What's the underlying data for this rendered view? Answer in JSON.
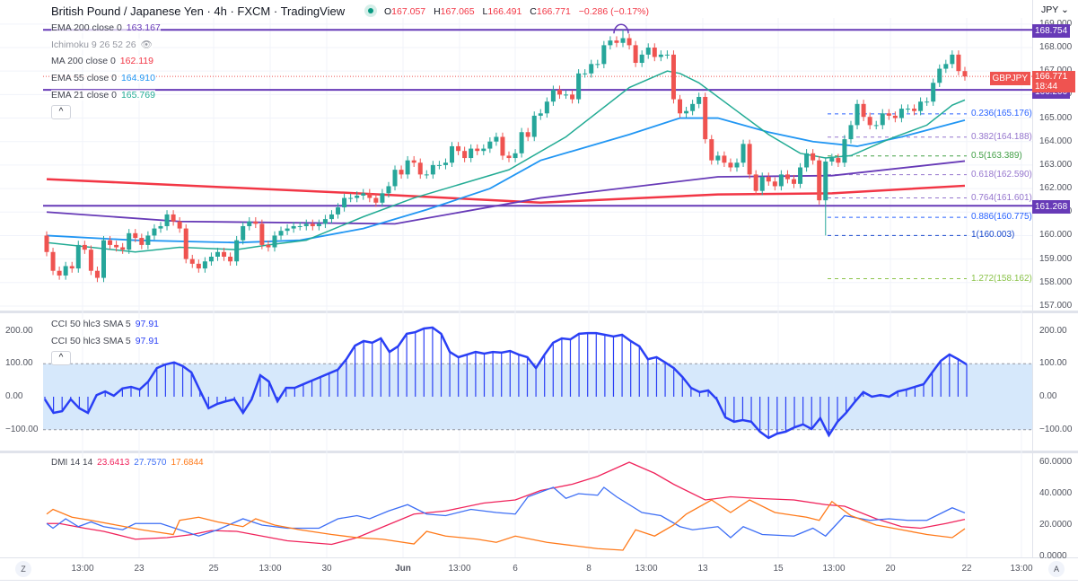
{
  "header": {
    "title": "British Pound / Japanese Yen · 4h · FXCM · TradingView",
    "o_label": "O",
    "o": "167.057",
    "h_label": "H",
    "h": "167.065",
    "l_label": "L",
    "l": "166.491",
    "c_label": "C",
    "c": "166.771",
    "change": "−0.286 (−0.17%)",
    "market_status_icon": "market-open-dot"
  },
  "legend": {
    "ema200": {
      "label": "EMA 200 close 0",
      "value": "163.167",
      "color": "#673ab7"
    },
    "ichimoku": {
      "label": "Ichimoku 9 26 52 26",
      "icon": "eye-crossed-icon"
    },
    "ma200": {
      "label": "MA 200 close 0",
      "value": "162.119",
      "color": "#f23645"
    },
    "ema55": {
      "label": "EMA 55 close 0",
      "value": "164.910",
      "color": "#2196f3"
    },
    "ema21": {
      "label": "EMA 21 close 0",
      "value": "165.769",
      "color": "#22ab94"
    },
    "collapse": "^"
  },
  "price_axis": {
    "currency": "JPY",
    "ticks": [
      "169.000",
      "168.000",
      "167.000",
      "166.000",
      "165.000",
      "164.000",
      "163.000",
      "162.000",
      "161.000",
      "160.000",
      "159.000",
      "158.000",
      "157.000"
    ],
    "levels": [
      "168.754",
      "166.200",
      "161.268"
    ],
    "symbol_tag": "GBPJPY",
    "last_price": "166.771",
    "countdown": "18:44"
  },
  "fib": [
    {
      "label": "0.236(165.176)",
      "price": 165.176,
      "color": "#2962ff"
    },
    {
      "label": "0.382(164.188)",
      "price": 164.188,
      "color": "#9575cd"
    },
    {
      "label": "0.5(163.389)",
      "price": 163.389,
      "color": "#43a047"
    },
    {
      "label": "0.618(162.590)",
      "price": 162.59,
      "color": "#9575cd"
    },
    {
      "label": "0.764(161.601)",
      "price": 161.601,
      "color": "#9575cd"
    },
    {
      "label": "0.886(160.775)",
      "price": 160.775,
      "color": "#2962ff"
    },
    {
      "label": "1(160.003)",
      "price": 160.003,
      "color": "#1848cc"
    },
    {
      "label": "1.272(158.162)",
      "price": 158.162,
      "color": "#8bc34a"
    }
  ],
  "cci": {
    "legend1": "CCI 50 hlc3 SMA 5",
    "value1": "97.91",
    "legend2": "CCI 50 hlc3 SMA 5",
    "value2": "97.91",
    "ticks": [
      "200.00",
      "100.00",
      "0.00",
      "−100.00"
    ],
    "collapse": "^"
  },
  "dmi": {
    "label": "DMI 14 14",
    "adx": "23.6413",
    "plus": "27.7570",
    "minus": "17.6844",
    "ticks": [
      "60.0000",
      "40.0000",
      "20.0000",
      "0.0000"
    ]
  },
  "time_axis": {
    "labels": [
      "13:00",
      "23",
      "25",
      "13:00",
      "30",
      "Jun",
      "13:00",
      "6",
      "8",
      "13:00",
      "13",
      "15",
      "13:00",
      "20",
      "22",
      "13:00"
    ],
    "left_button": "Z",
    "right_button": "A"
  },
  "colors": {
    "up": "#26a69a",
    "down": "#ef5350",
    "level": "#673ab7",
    "cci": "#2a3ff5",
    "cci_band": "#d6e8fb",
    "adx": "#f0245c",
    "plus_di": "#3d6ef5",
    "minus_di": "#ff7a1a"
  },
  "chart_data": [
    {
      "type": "candlestick",
      "title": "GBPJPY 4h",
      "ylim": [
        157,
        169
      ],
      "first_open": 160.0,
      "closes": [
        159.3,
        158.5,
        158.3,
        158.7,
        158.6,
        159.6,
        159.4,
        158.5,
        158.2,
        159.8,
        159.6,
        159.5,
        159.4,
        160.1,
        159.9,
        159.6,
        160.0,
        160.3,
        160.4,
        160.9,
        160.6,
        160.3,
        159.0,
        158.8,
        158.6,
        158.9,
        159.1,
        159.3,
        159.1,
        158.9,
        159.8,
        160.4,
        160.6,
        160.5,
        159.6,
        159.5,
        160.0,
        160.2,
        160.3,
        160.4,
        160.4,
        160.5,
        160.4,
        160.5,
        160.7,
        160.9,
        161.2,
        161.6,
        161.6,
        161.7,
        161.8,
        161.6,
        161.4,
        161.8,
        162.1,
        162.8,
        162.6,
        163.2,
        163.1,
        162.6,
        162.6,
        163.0,
        163.0,
        163.1,
        163.8,
        163.6,
        163.3,
        163.7,
        163.6,
        163.7,
        164.0,
        164.2,
        163.4,
        163.3,
        163.5,
        164.4,
        164.2,
        165.1,
        165.2,
        165.7,
        166.2,
        166.0,
        166.0,
        165.8,
        166.9,
        166.9,
        167.3,
        167.3,
        168.1,
        168.3,
        168.2,
        168.4,
        168.1,
        167.35,
        167.7,
        168.0,
        167.6,
        167.7,
        167.7,
        165.8,
        165.2,
        165.3,
        165.6,
        165.9,
        164.1,
        163.2,
        163.4,
        163.1,
        162.9,
        163.1,
        163.9,
        162.6,
        161.9,
        162.5,
        162.3,
        162.1,
        162.6,
        162.4,
        162.2,
        162.9,
        163.5,
        163.2,
        161.5,
        163.15,
        163.3,
        163.1,
        164.1,
        164.7,
        165.6,
        165.05,
        164.7,
        164.7,
        165.2,
        165.1,
        165.0,
        165.4,
        165.4,
        165.3,
        165.7,
        165.7,
        166.5,
        167.1,
        167.3,
        167.7,
        167.0,
        166.771
      ],
      "extremes": [
        {
          "index": 91,
          "high": 168.754
        },
        {
          "index": 123,
          "low": 160.003
        }
      ],
      "overlays": {
        "ma200": [
          [
            0,
            162.4
          ],
          [
            49,
            161.8
          ],
          [
            78,
            161.4
          ],
          [
            106,
            161.75
          ],
          [
            124,
            161.8
          ],
          [
            145,
            162.12
          ]
        ],
        "ema200": [
          [
            0,
            161.0
          ],
          [
            21,
            160.6
          ],
          [
            55,
            160.5
          ],
          [
            78,
            161.6
          ],
          [
            106,
            162.5
          ],
          [
            124,
            162.55
          ],
          [
            145,
            163.17
          ]
        ],
        "ema55": [
          [
            0,
            160.0
          ],
          [
            14,
            159.8
          ],
          [
            30,
            159.7
          ],
          [
            40,
            159.8
          ],
          [
            50,
            160.3
          ],
          [
            60,
            161.1
          ],
          [
            70,
            162.0
          ],
          [
            78,
            163.2
          ],
          [
            92,
            164.3
          ],
          [
            100,
            165.0
          ],
          [
            106,
            165.0
          ],
          [
            114,
            164.4
          ],
          [
            121,
            164.0
          ],
          [
            128,
            163.8
          ],
          [
            135,
            164.2
          ],
          [
            145,
            164.91
          ]
        ],
        "ema21": [
          [
            0,
            159.7
          ],
          [
            14,
            159.3
          ],
          [
            21,
            159.5
          ],
          [
            30,
            159.4
          ],
          [
            35,
            159.6
          ],
          [
            41,
            159.8
          ],
          [
            50,
            160.8
          ],
          [
            58,
            161.6
          ],
          [
            73,
            162.8
          ],
          [
            82,
            164.2
          ],
          [
            92,
            166.3
          ],
          [
            98,
            167.0
          ],
          [
            100,
            166.9
          ],
          [
            103,
            166.5
          ],
          [
            109,
            165.3
          ],
          [
            114,
            164.3
          ],
          [
            119,
            163.5
          ],
          [
            123,
            163.3
          ],
          [
            127,
            163.4
          ],
          [
            133,
            164.1
          ],
          [
            139,
            164.7
          ],
          [
            143,
            165.55
          ],
          [
            145,
            165.77
          ]
        ]
      },
      "horizontal_levels": [
        168.754,
        166.2,
        161.268
      ]
    },
    {
      "type": "line",
      "title": "CCI 50 hlc3 SMA 5",
      "ylim": [
        -180,
        230
      ],
      "band": [
        -100,
        100
      ],
      "values": [
        -8,
        -49,
        -44,
        -8,
        -35,
        -49,
        5,
        16,
        3,
        25,
        30,
        22,
        46,
        87,
        98,
        104,
        93,
        74,
        19,
        -35,
        -22,
        -14,
        -8,
        -49,
        -8,
        65,
        46,
        -14,
        27,
        27,
        38,
        49,
        60,
        71,
        82,
        114,
        155,
        169,
        164,
        177,
        136,
        153,
        191,
        196,
        207,
        210,
        191,
        136,
        120,
        128,
        136,
        131,
        136,
        134,
        139,
        128,
        120,
        87,
        128,
        164,
        177,
        174,
        191,
        193,
        193,
        188,
        183,
        188,
        169,
        153,
        114,
        120,
        104,
        87,
        60,
        27,
        14,
        19,
        -8,
        -63,
        -76,
        -71,
        -76,
        -106,
        -125,
        -112,
        -106,
        -93,
        -84,
        -98,
        -65,
        -117,
        -76,
        -49,
        -16,
        14,
        0,
        5,
        0,
        16,
        22,
        30,
        38,
        74,
        109,
        128,
        114,
        97.91
      ]
    },
    {
      "type": "line",
      "title": "DMI 14 14",
      "ylim": [
        0,
        62
      ],
      "series": [
        {
          "name": "ADX",
          "values": [
            [
              0,
              21
            ],
            [
              2,
              21
            ],
            [
              6,
              18
            ],
            [
              9,
              16
            ],
            [
              14,
              11
            ],
            [
              19,
              12
            ],
            [
              23,
              14
            ],
            [
              26,
              16.5
            ],
            [
              30,
              16
            ],
            [
              34,
              13
            ],
            [
              38,
              10
            ],
            [
              45,
              7.7
            ],
            [
              49,
              12
            ],
            [
              52,
              17
            ],
            [
              58,
              27
            ],
            [
              63,
              29
            ],
            [
              69,
              34
            ],
            [
              74,
              36
            ],
            [
              78,
              42
            ],
            [
              83,
              46
            ],
            [
              87,
              51
            ],
            [
              92,
              60
            ],
            [
              96,
              53
            ],
            [
              99,
              46
            ],
            [
              104,
              36
            ],
            [
              108,
              38
            ],
            [
              112,
              37
            ],
            [
              118,
              36
            ],
            [
              123,
              33
            ],
            [
              126,
              32
            ],
            [
              131,
              24
            ],
            [
              135,
              19
            ],
            [
              138,
              18
            ],
            [
              142,
              21
            ],
            [
              145,
              23.64
            ]
          ]
        },
        {
          "name": "+DI",
          "values": [
            [
              0,
              21
            ],
            [
              1,
              18
            ],
            [
              3,
              24
            ],
            [
              5,
              19
            ],
            [
              7,
              22
            ],
            [
              9,
              19
            ],
            [
              12,
              17
            ],
            [
              14,
              21
            ],
            [
              18,
              21
            ],
            [
              21,
              17
            ],
            [
              24,
              13
            ],
            [
              27,
              17
            ],
            [
              31,
              24
            ],
            [
              34,
              20
            ],
            [
              38,
              18
            ],
            [
              43,
              18
            ],
            [
              46,
              24
            ],
            [
              49,
              26
            ],
            [
              51,
              24
            ],
            [
              54,
              29
            ],
            [
              57,
              33
            ],
            [
              60,
              27
            ],
            [
              63,
              26
            ],
            [
              67,
              30
            ],
            [
              71,
              28
            ],
            [
              74,
              27
            ],
            [
              76,
              38
            ],
            [
              80,
              44
            ],
            [
              82,
              37
            ],
            [
              84,
              40
            ],
            [
              87,
              39
            ],
            [
              88,
              44
            ],
            [
              90,
              38
            ],
            [
              94,
              28
            ],
            [
              97,
              26
            ],
            [
              100,
              19
            ],
            [
              102,
              17
            ],
            [
              106,
              19
            ],
            [
              108,
              12
            ],
            [
              110,
              19
            ],
            [
              113,
              14
            ],
            [
              118,
              13
            ],
            [
              121,
              18
            ],
            [
              123,
              13
            ],
            [
              126,
              26
            ],
            [
              130,
              23
            ],
            [
              133,
              24
            ],
            [
              136,
              23
            ],
            [
              139,
              23
            ],
            [
              142,
              29
            ],
            [
              143,
              31
            ],
            [
              145,
              27.76
            ]
          ]
        },
        {
          "name": "−DI",
          "values": [
            [
              0,
              27
            ],
            [
              1,
              30
            ],
            [
              4,
              25
            ],
            [
              7,
              23
            ],
            [
              11,
              20
            ],
            [
              15,
              17
            ],
            [
              20,
              14
            ],
            [
              21,
              23
            ],
            [
              24,
              25
            ],
            [
              27,
              22
            ],
            [
              31,
              19
            ],
            [
              33,
              24
            ],
            [
              36,
              20
            ],
            [
              40,
              17
            ],
            [
              45,
              14
            ],
            [
              49,
              12
            ],
            [
              53,
              11
            ],
            [
              58,
              8
            ],
            [
              60,
              16
            ],
            [
              63,
              13
            ],
            [
              68,
              11
            ],
            [
              71,
              9
            ],
            [
              74,
              13
            ],
            [
              79,
              9
            ],
            [
              83,
              7
            ],
            [
              87,
              5
            ],
            [
              91,
              4
            ],
            [
              93,
              17
            ],
            [
              96,
              13
            ],
            [
              99,
              20
            ],
            [
              101,
              27
            ],
            [
              105,
              36
            ],
            [
              108,
              28
            ],
            [
              111,
              36
            ],
            [
              115,
              28
            ],
            [
              120,
              25
            ],
            [
              122,
              23
            ],
            [
              124,
              35
            ],
            [
              127,
              26
            ],
            [
              131,
              20
            ],
            [
              135,
              17
            ],
            [
              139,
              14
            ],
            [
              143,
              12
            ],
            [
              145,
              17.68
            ]
          ]
        }
      ]
    }
  ]
}
